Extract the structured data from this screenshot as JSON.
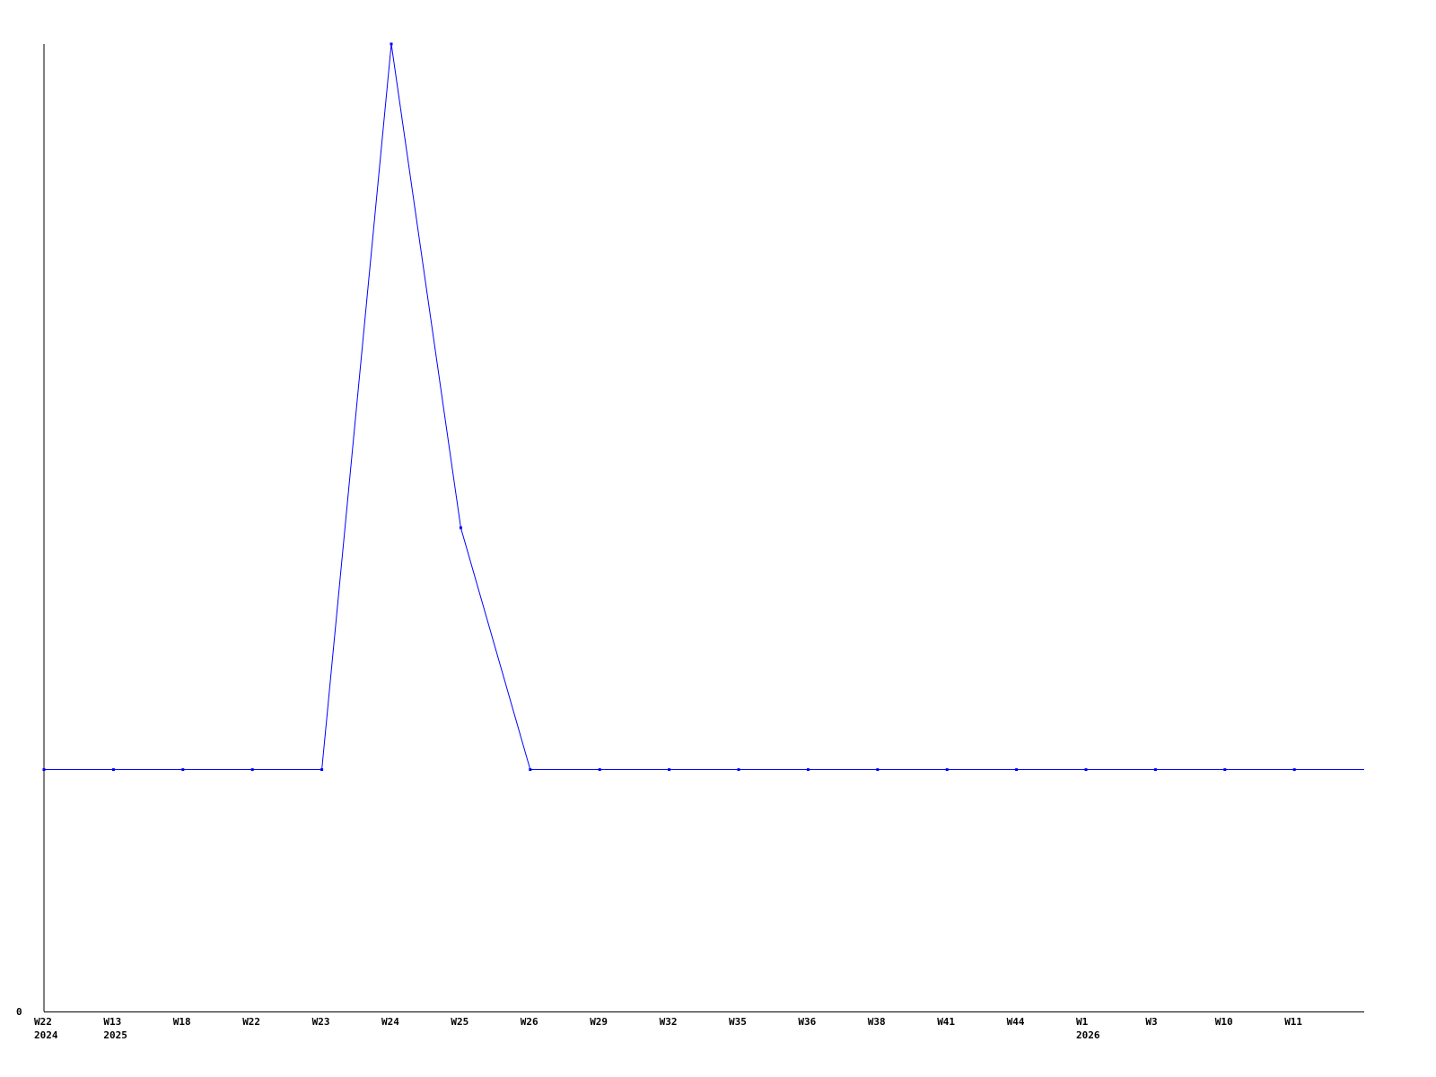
{
  "chart_data": {
    "type": "line",
    "title": "",
    "xlabel": "",
    "ylabel": "",
    "categories": [
      "W22",
      "W13",
      "W18",
      "W22",
      "W23",
      "W24",
      "W25",
      "W26",
      "W29",
      "W32",
      "W35",
      "W36",
      "W38",
      "W41",
      "W44",
      "W1",
      "W3",
      "W10",
      "W11"
    ],
    "year_labels": [
      {
        "index": 0,
        "label": "2024"
      },
      {
        "index": 1,
        "label": "2025"
      },
      {
        "index": 15,
        "label": "2026"
      }
    ],
    "series": [
      {
        "values": [
          1,
          1,
          1,
          1,
          1,
          4,
          2,
          1,
          1,
          1,
          1,
          1,
          1,
          1,
          1,
          1,
          1,
          1,
          1
        ],
        "color": "#0000ff"
      }
    ],
    "y_tick_labels": [
      "0"
    ],
    "ylim": [
      0,
      4
    ],
    "grid": false,
    "legend": "none"
  }
}
